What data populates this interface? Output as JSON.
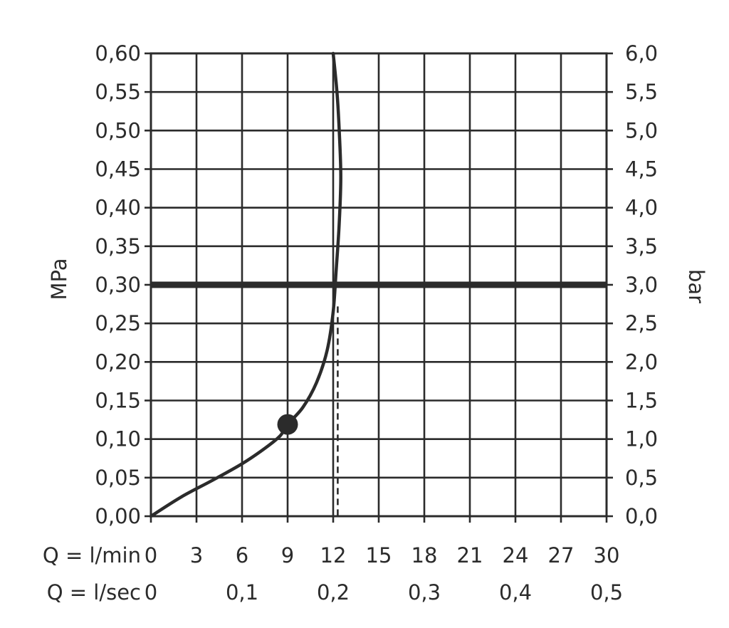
{
  "chart_data": {
    "type": "line",
    "x_axis": {
      "label": "Q = l/min",
      "range": [
        0,
        30
      ],
      "ticks": [
        "0",
        "3",
        "6",
        "9",
        "12",
        "15",
        "18",
        "21",
        "24",
        "27",
        "30"
      ]
    },
    "x2_axis": {
      "label": "Q = l/sec",
      "range": [
        0,
        0.5
      ],
      "ticks": [
        "0",
        "0,1",
        "0,2",
        "0,3",
        "0,4",
        "0,5"
      ]
    },
    "y_axis": {
      "label": "MPa",
      "range": [
        0,
        0.6
      ],
      "ticks": [
        "0,00",
        "0,05",
        "0,10",
        "0,15",
        "0,20",
        "0,25",
        "0,30",
        "0,35",
        "0,40",
        "0,45",
        "0,50",
        "0,55",
        "0,60"
      ]
    },
    "y2_axis": {
      "label": "bar",
      "range": [
        0,
        6.0
      ],
      "ticks": [
        "0,0",
        "0,5",
        "1,0",
        "1,5",
        "2,0",
        "2,5",
        "3,0",
        "3,5",
        "4,0",
        "4,5",
        "5,0",
        "5,5",
        "6,0"
      ]
    },
    "grid": true,
    "series": [
      {
        "points": [
          [
            0,
            0
          ],
          [
            2.0,
            0.025
          ],
          [
            4.0,
            0.046
          ],
          [
            6.0,
            0.068
          ],
          [
            7.5,
            0.088
          ],
          [
            8.5,
            0.104
          ],
          [
            9.0,
            0.119
          ],
          [
            10.0,
            0.141
          ],
          [
            10.9,
            0.173
          ],
          [
            11.6,
            0.215
          ],
          [
            12.0,
            0.265
          ],
          [
            12.2,
            0.32
          ],
          [
            12.4,
            0.38
          ],
          [
            12.5,
            0.44
          ],
          [
            12.4,
            0.5
          ],
          [
            12.25,
            0.55
          ],
          [
            12.0,
            0.6
          ]
        ]
      }
    ],
    "reference_line_y": 0.3,
    "marker_point": [
      9.0,
      0.119
    ],
    "dashed_drop_x": 12.3
  }
}
